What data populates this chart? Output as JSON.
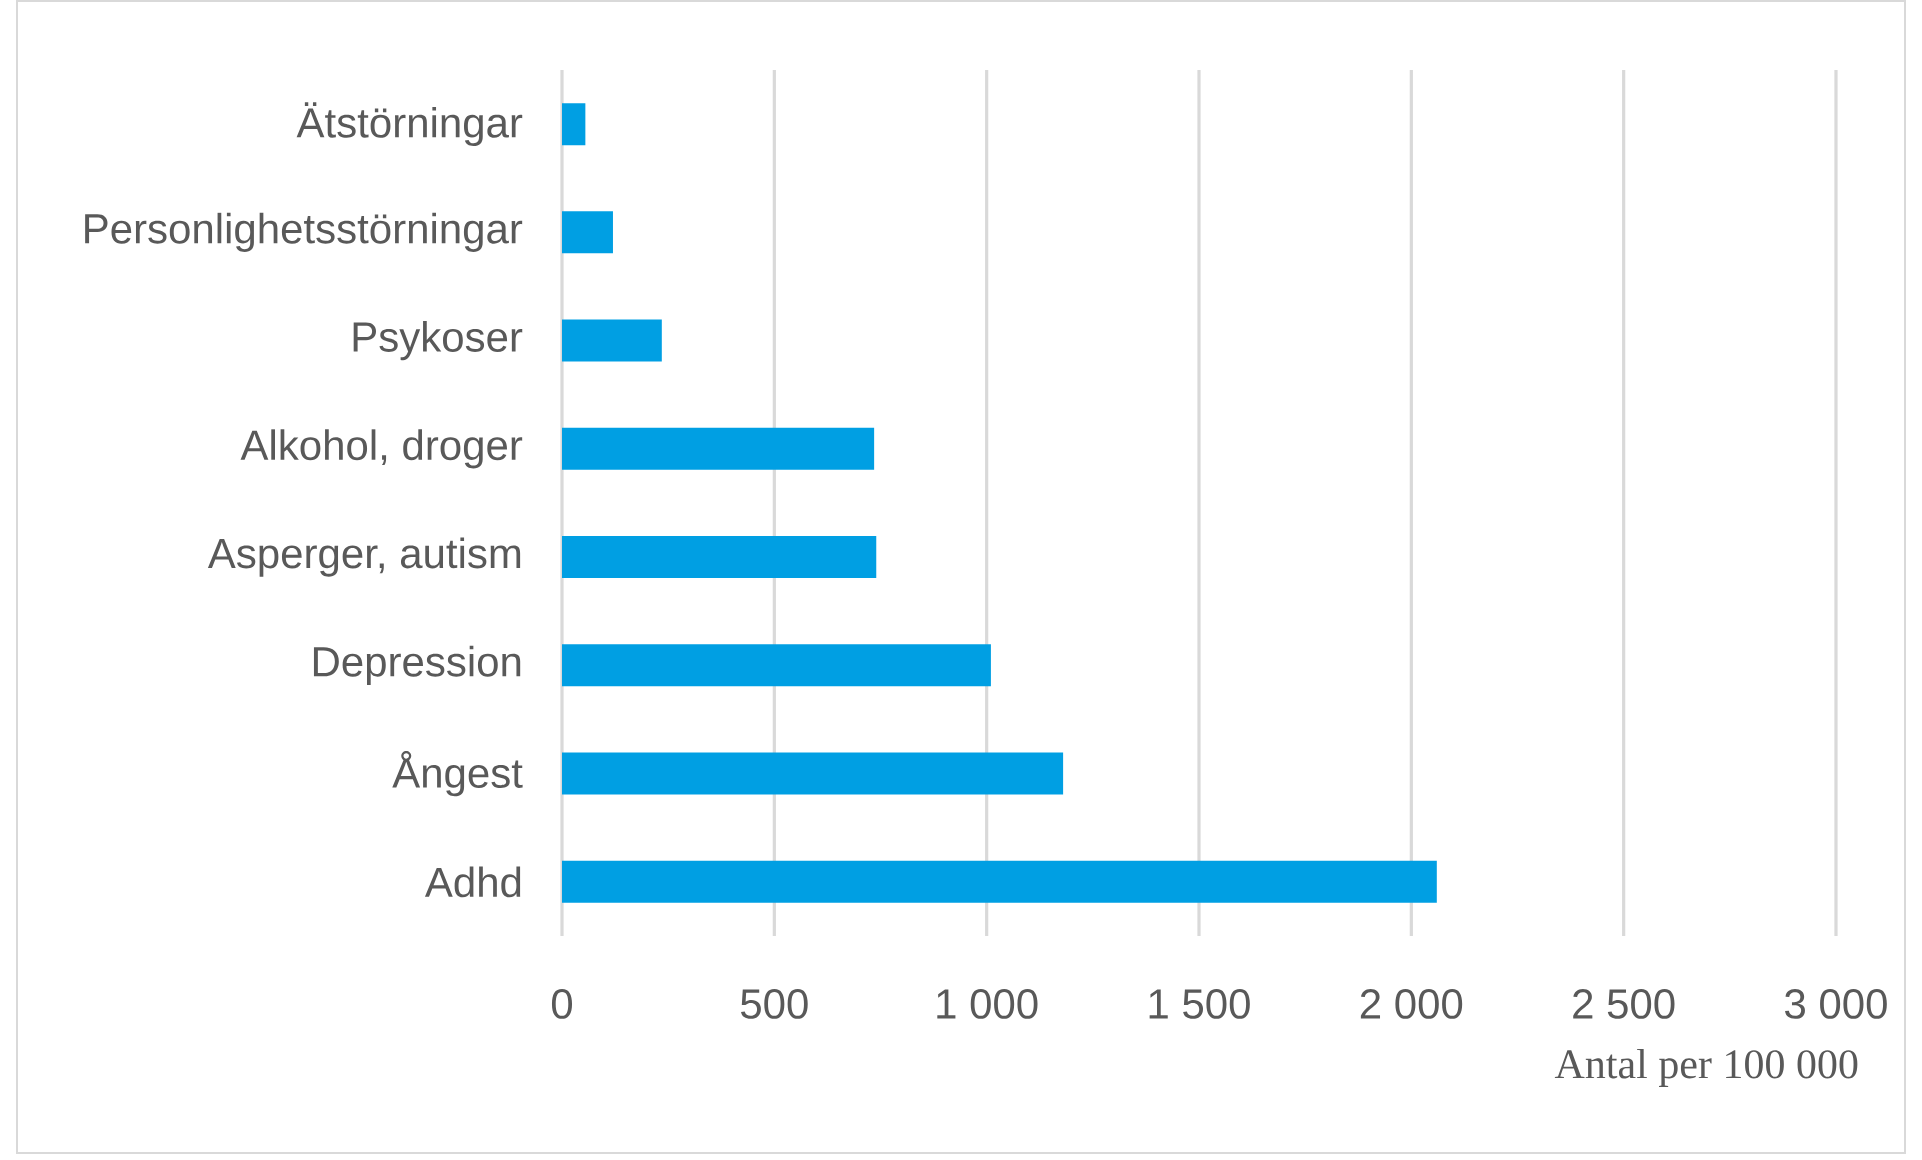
{
  "chart_data": {
    "type": "bar",
    "orientation": "horizontal",
    "categories": [
      "Ätstörningar",
      "Personlighetsstörningar",
      "Psykoser",
      "Alkohol, droger",
      "Asperger, autism",
      "Depression",
      "Ångest",
      "Adhd"
    ],
    "values": [
      55,
      120,
      235,
      735,
      740,
      1010,
      1180,
      2060
    ],
    "color": "#009fe3",
    "xlabel": "Antal per 100 000",
    "xlim": [
      0,
      3000
    ],
    "xticks": [
      0,
      500,
      {
        "value": 1000,
        "label": "1 000"
      },
      {
        "value": 1500,
        "label": "1 500"
      },
      {
        "value": 2000,
        "label": "2 000"
      },
      {
        "value": 2500,
        "label": "2 500"
      },
      {
        "value": 3000,
        "label": "3 000"
      }
    ],
    "grid": "x"
  }
}
